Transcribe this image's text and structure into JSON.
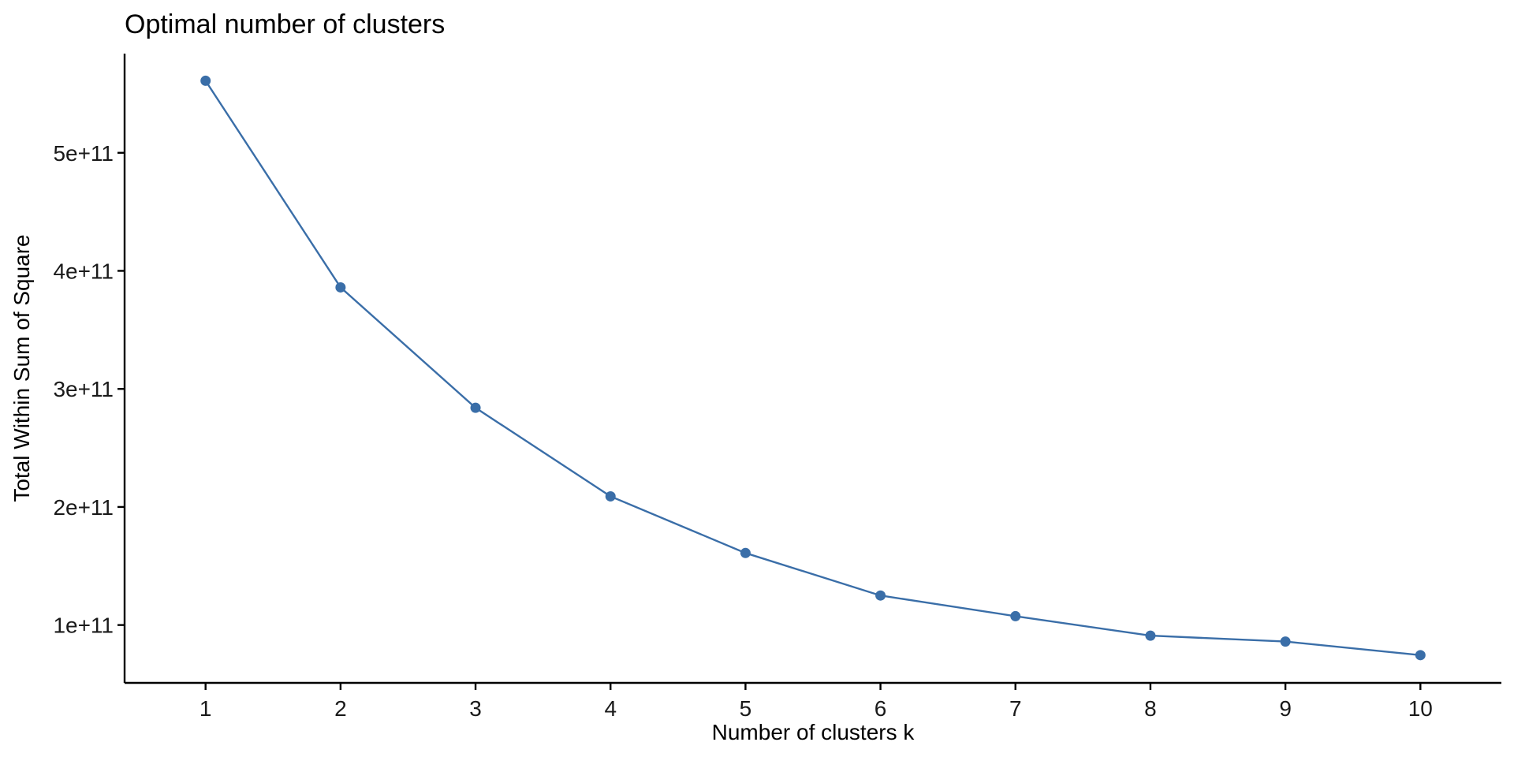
{
  "chart_data": {
    "type": "line",
    "title": "Optimal number of clusters",
    "xlabel": "Number of clusters k",
    "ylabel": "Total Within Sum of Square",
    "x": [
      1,
      2,
      3,
      4,
      5,
      6,
      7,
      8,
      9,
      10
    ],
    "x_tick_labels": [
      "1",
      "2",
      "3",
      "4",
      "5",
      "6",
      "7",
      "8",
      "9",
      "10"
    ],
    "y_ticks": [
      100000000000,
      200000000000,
      300000000000,
      400000000000,
      500000000000
    ],
    "y_tick_labels": [
      "1e+11",
      "2e+11",
      "3e+11",
      "4e+11",
      "5e+11"
    ],
    "xlim": [
      0.4,
      10.6
    ],
    "ylim": [
      51000000000,
      584000000000
    ],
    "series": [
      {
        "values": [
          561000000000,
          386000000000,
          284000000000,
          209000000000,
          161000000000,
          125000000000,
          107500000000,
          91000000000,
          86000000000,
          74500000000
        ]
      }
    ],
    "grid": false,
    "colors": {
      "series": "#3a6ea8",
      "axis": "#000000",
      "background": "#ffffff"
    }
  }
}
